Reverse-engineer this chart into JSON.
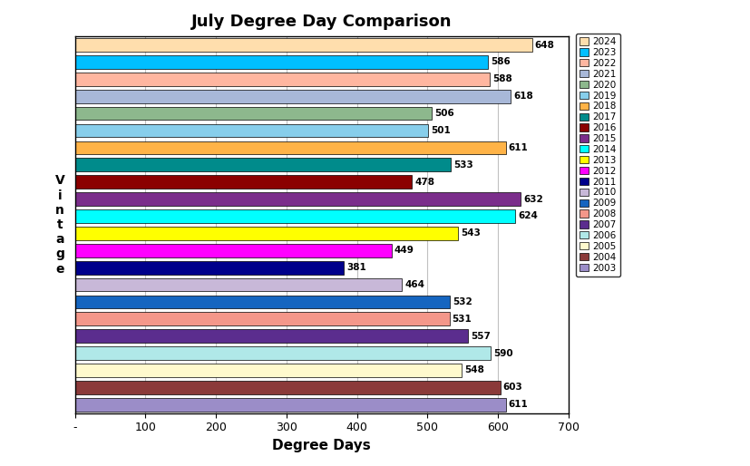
{
  "title": "July Degree Day Comparison",
  "xlabel": "Degree Days",
  "years": [
    "2024",
    "2023",
    "2022",
    "2021",
    "2020",
    "2019",
    "2018",
    "2017",
    "2016",
    "2015",
    "2014",
    "2013",
    "2012",
    "2011",
    "2010",
    "2009",
    "2008",
    "2007",
    "2006",
    "2005",
    "2004",
    "2003"
  ],
  "values": [
    648,
    586,
    588,
    618,
    506,
    501,
    611,
    533,
    478,
    632,
    624,
    543,
    449,
    381,
    464,
    532,
    531,
    557,
    590,
    548,
    603,
    611
  ],
  "colors": [
    "#FFDEAD",
    "#00BFFF",
    "#FFB6A0",
    "#A8B8D8",
    "#8DB88D",
    "#87CEEB",
    "#FFB347",
    "#008B8B",
    "#8B0000",
    "#7B2D8B",
    "#00FFFF",
    "#FFFF00",
    "#FF00FF",
    "#00008B",
    "#C8B8D8",
    "#1565C0",
    "#F4978A",
    "#5B2D8E",
    "#B0E8E8",
    "#FFFACD",
    "#8B3A3A",
    "#9B8DC8"
  ],
  "xlim": [
    0,
    700
  ],
  "xticks": [
    0,
    100,
    200,
    300,
    400,
    500,
    600,
    700
  ],
  "xticklabels": [
    "-",
    "100",
    "200",
    "300",
    "400",
    "500",
    "600",
    "700"
  ],
  "background_color": "#FFFFFF",
  "plot_bg_color": "#FFFFFF",
  "grid_color": "#C0C0C0"
}
